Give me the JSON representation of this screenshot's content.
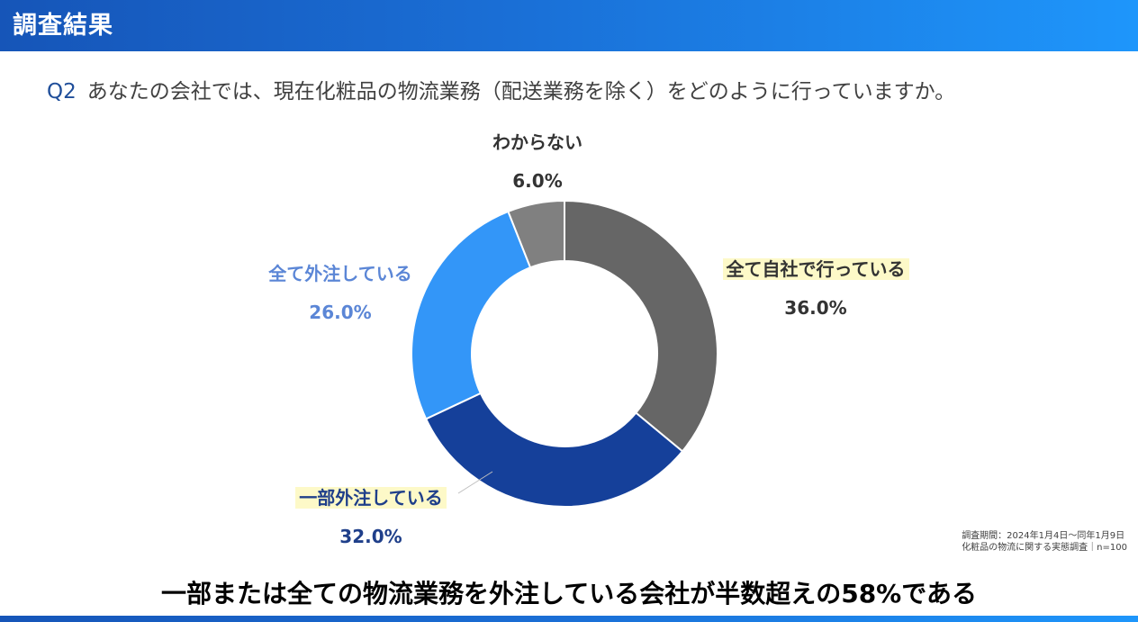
{
  "header": {
    "title": "調査結果"
  },
  "question": {
    "number": "Q2",
    "text": "あなたの会社では、現在化粧品の物流業務（配送業務を除く）をどのように行っていますか。"
  },
  "colors": {
    "header_start": "#1655b8",
    "header_end": "#1e96fb",
    "self": "#666666",
    "partial": "#15409a",
    "full": "#3396f8",
    "unknown": "#808080",
    "highlight": "#fdf9c8"
  },
  "chart_data": {
    "type": "pie",
    "variant": "donut",
    "title": "",
    "start_angle_deg": 0,
    "direction": "clockwise",
    "categories": [
      "全て自社で行っている",
      "一部外注している",
      "全て外注している",
      "わからない"
    ],
    "values": [
      36.0,
      32.0,
      26.0,
      6.0
    ],
    "labels": [
      "36.0%",
      "32.0%",
      "26.0%",
      "6.0%"
    ],
    "colors": [
      "#666666",
      "#15409a",
      "#3396f8",
      "#808080"
    ],
    "label_colors": [
      "#333333",
      "#1f3f8a",
      "#5b86d6",
      "#333333"
    ],
    "highlighted": [
      true,
      true,
      false,
      false
    ],
    "unit": "%",
    "n": 100
  },
  "note": {
    "line1": "調査期間：2024年1月4日～同年1月9日",
    "line2": "化粧品の物流に関する実態調査｜n=100"
  },
  "conclusion": "一部または全ての物流業務を外注している会社が半数超えの58%である"
}
